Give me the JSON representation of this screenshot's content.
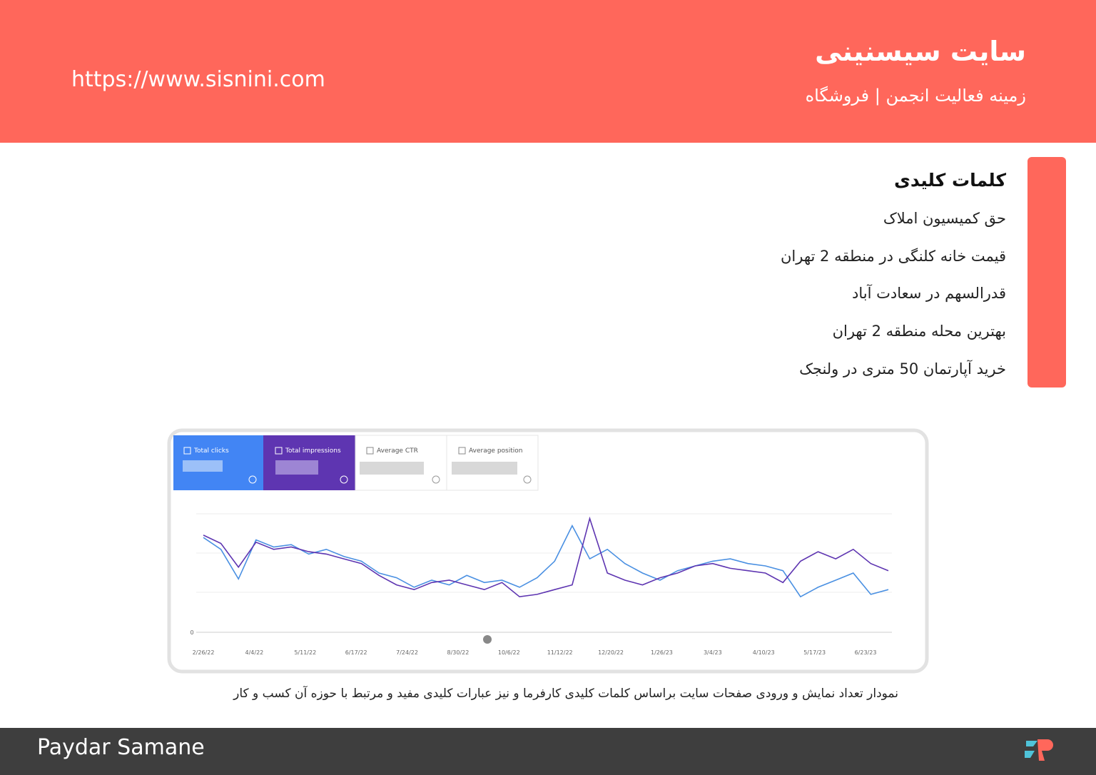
{
  "header": {
    "title": "سایت سیسنینی",
    "subtitle": "زمینه فعالیت انجمن | فروشگاه",
    "url": "https://www.sisnini.com"
  },
  "keywords": {
    "heading": "کلمات کلیدی",
    "items": [
      "حق کمیسیون املاک",
      "قیمت خانه کلنگی در منطقه 2 تهران",
      "قدرالسهم در سعادت آباد",
      "بهترین محله منطقه 2 تهران",
      "خرید آپارتمان 50 متری در ولنجک"
    ]
  },
  "chart_data": {
    "type": "line",
    "series": [
      {
        "name": "Total clicks",
        "color": "#4a90e2",
        "values": [
          80,
          70,
          45,
          78,
          72,
          74,
          66,
          70,
          64,
          60,
          50,
          46,
          38,
          44,
          40,
          48,
          42,
          44,
          38,
          46,
          60,
          90,
          62,
          70,
          58,
          50,
          44,
          52,
          56,
          60,
          62,
          58,
          56,
          52,
          30,
          38,
          44,
          50,
          32,
          36
        ]
      },
      {
        "name": "Total impressions",
        "color": "#5e35b1",
        "values": [
          82,
          75,
          55,
          76,
          70,
          72,
          68,
          66,
          62,
          58,
          48,
          40,
          36,
          42,
          44,
          40,
          36,
          42,
          30,
          32,
          36,
          40,
          96,
          50,
          44,
          40,
          46,
          50,
          56,
          58,
          54,
          52,
          50,
          42,
          60,
          68,
          62,
          70,
          58,
          52
        ]
      }
    ],
    "inactive_metrics": [
      "Average CTR",
      "Average position"
    ],
    "x_tick_labels": [
      "2/26/22",
      "4/4/22",
      "5/11/22",
      "6/17/22",
      "7/24/22",
      "8/30/22",
      "10/6/22",
      "11/12/22",
      "12/20/22",
      "1/26/23",
      "3/4/23",
      "4/10/23",
      "5/17/23",
      "6/23/23"
    ],
    "ylim": [
      0,
      100
    ],
    "yticks": [
      0
    ]
  },
  "caption": "نمودار تعداد نمایش و ورودی صفحات سایت براساس کلمات کلیدی کارفرما و نیز عبارات کلیدی مفید و مرتبط با حوزه آن کسب و کار",
  "footer": {
    "brand": "Paydar Samane"
  }
}
